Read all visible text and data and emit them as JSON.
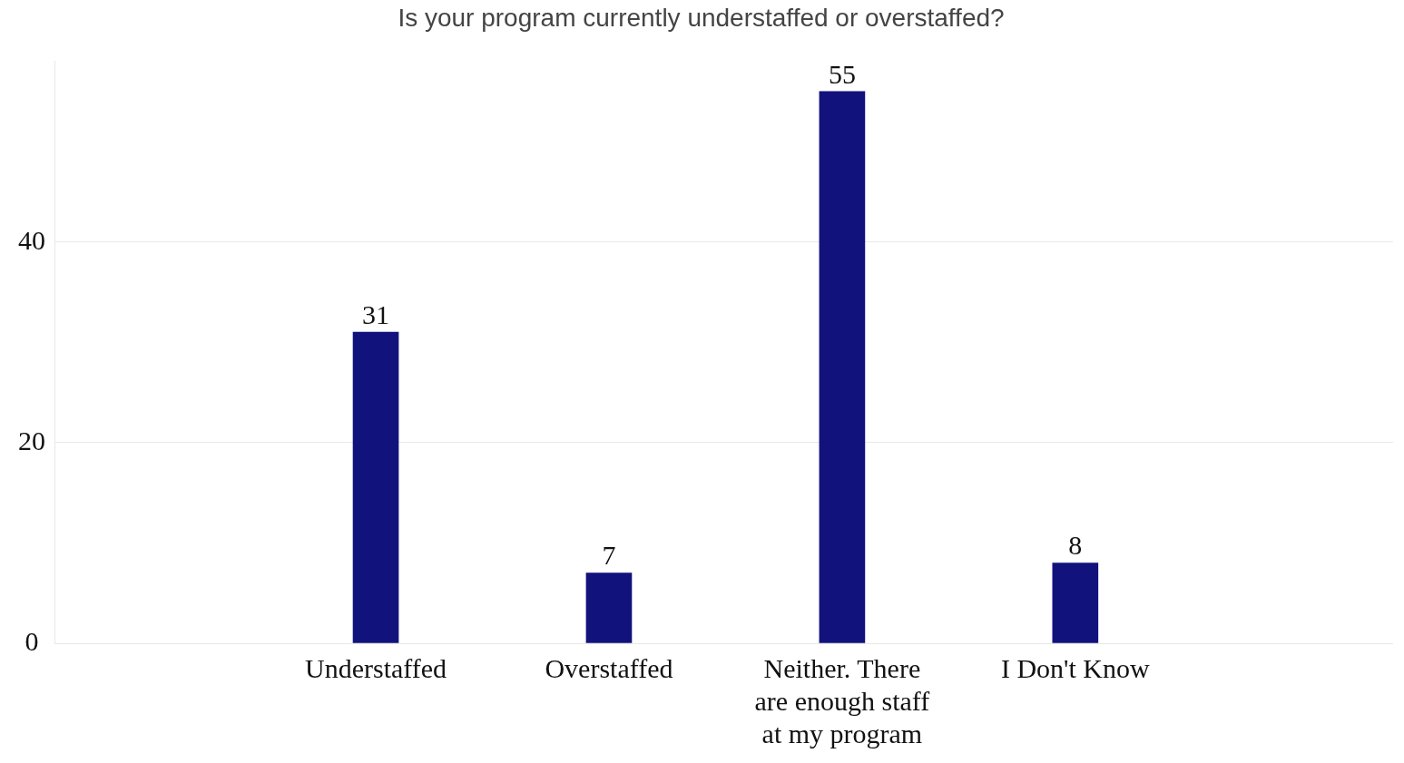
{
  "chart_data": {
    "type": "bar",
    "title": "Is your program currently understaffed or overstaffed?",
    "categories": [
      "Understaffed",
      "Overstaffed",
      "Neither. There are enough staff at my program",
      "I Don't Know"
    ],
    "values": [
      31,
      7,
      55,
      8
    ],
    "color": "#12127d",
    "ylim": [
      0,
      58
    ],
    "yticks": [
      0,
      20,
      40
    ],
    "grid": "y",
    "legend": false,
    "data_labels": true
  }
}
